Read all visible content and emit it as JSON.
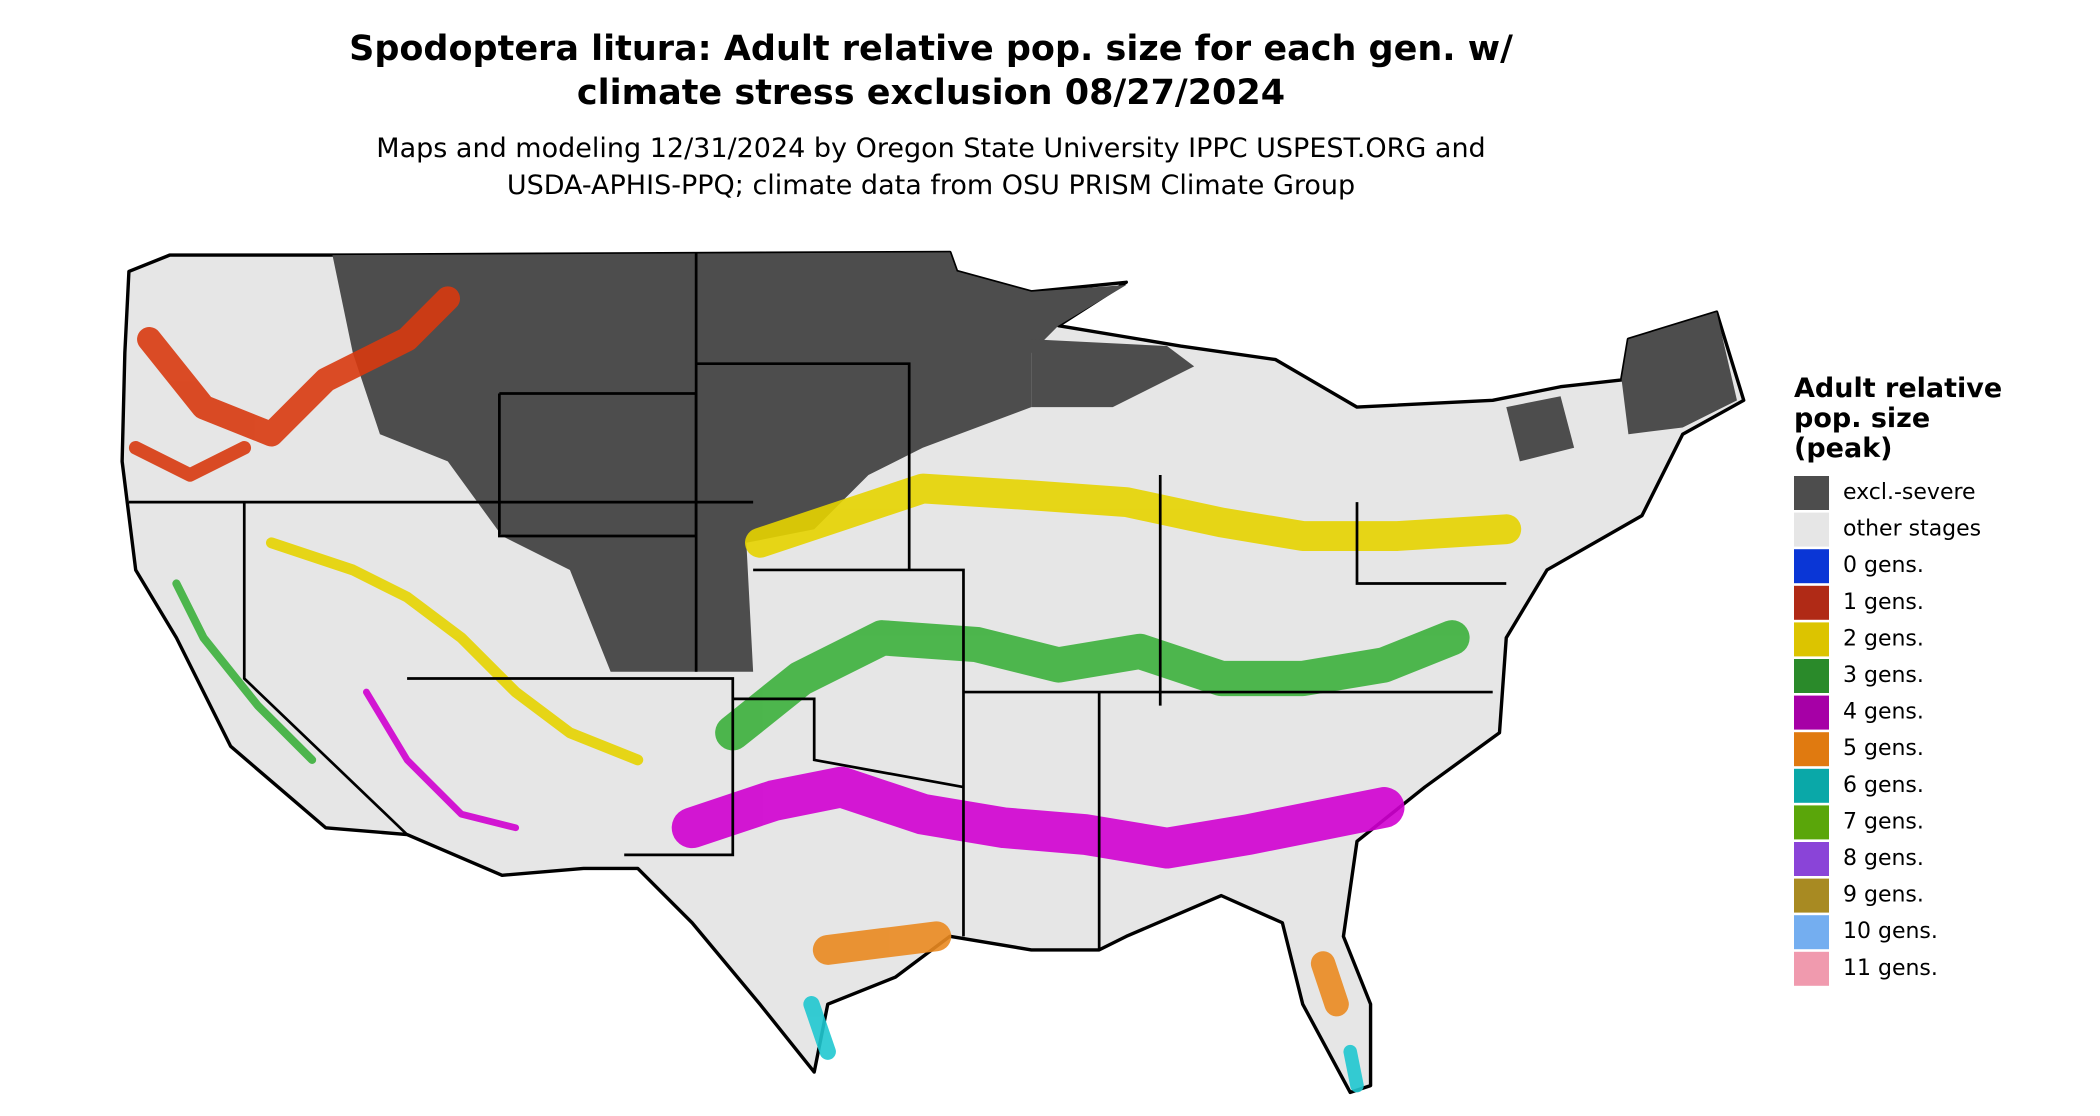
{
  "header": {
    "title": [
      "Spodoptera litura: Adult relative pop. size for each gen. w/",
      "climate stress exclusion 08/27/2024"
    ],
    "subtitle": [
      "Maps and modeling 12/31/2024 by Oregon State University IPPC USPEST.ORG and",
      "USDA-APHIS-PPQ; climate data from OSU PRISM Climate Group"
    ]
  },
  "legend": {
    "title": [
      "Adult relative",
      "pop. size",
      "(peak)"
    ],
    "items": [
      {
        "label": "excl.-severe",
        "color": "#4d4d4d"
      },
      {
        "label": "other stages",
        "color": "#e6e6e6"
      },
      {
        "label": "0 gens.",
        "color": "#0a36d6"
      },
      {
        "label": "1 gens.",
        "color": "#b02a16"
      },
      {
        "label": "2 gens.",
        "color": "#dcc400"
      },
      {
        "label": "3 gens.",
        "color": "#2a8a2a"
      },
      {
        "label": "4 gens.",
        "color": "#a600a6"
      },
      {
        "label": "5 gens.",
        "color": "#e07a10"
      },
      {
        "label": "6 gens.",
        "color": "#0aa8a8"
      },
      {
        "label": "7 gens.",
        "color": "#5aa60a"
      },
      {
        "label": "8 gens.",
        "color": "#8a44d8"
      },
      {
        "label": "9 gens.",
        "color": "#a88a22"
      },
      {
        "label": "10 gens.",
        "color": "#74aef0"
      },
      {
        "label": "11 gens.",
        "color": "#f09aae"
      }
    ]
  }
}
